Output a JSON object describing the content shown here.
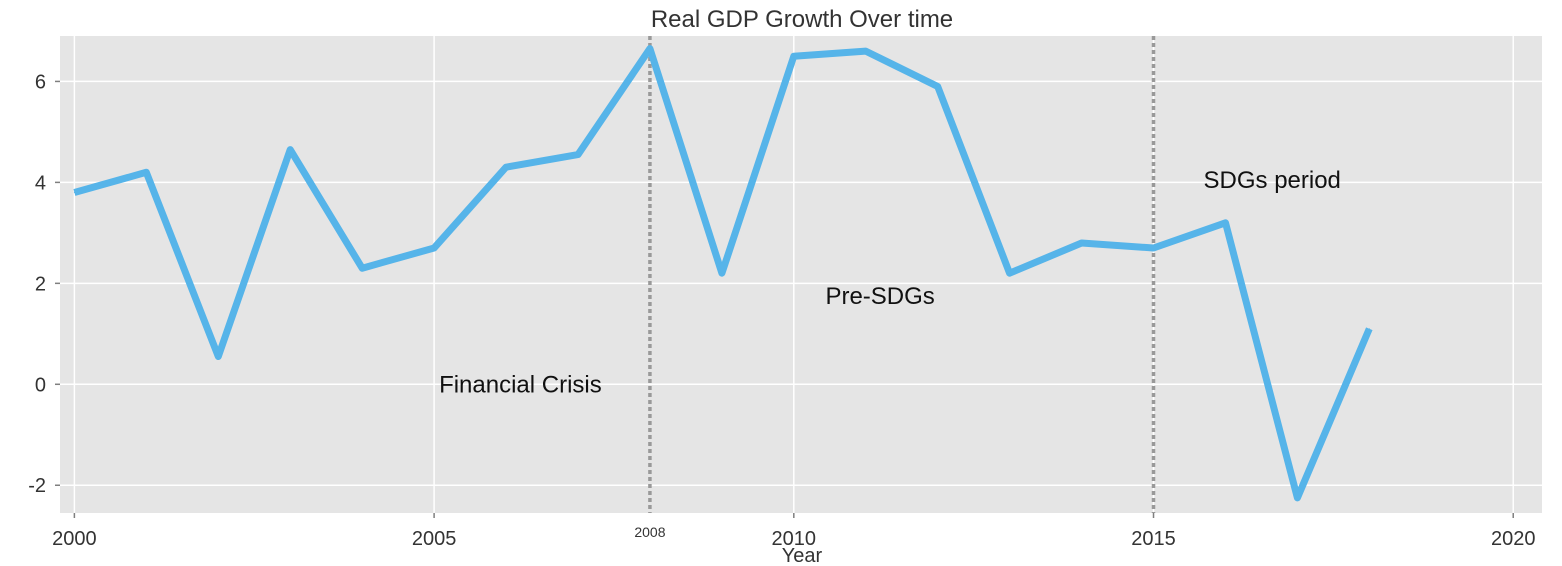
{
  "chart_data": {
    "type": "line",
    "title": "Real GDP Growth Over time",
    "xlabel": "Year",
    "ylabel": "",
    "xlim": [
      1999.8,
      2020.4
    ],
    "ylim": [
      -2.55,
      6.9
    ],
    "xticks": [
      2000,
      2005,
      2010,
      2015,
      2020
    ],
    "xtick_labels": [
      "2000",
      "2005",
      "2010",
      "2015",
      "2020"
    ],
    "yticks": [
      -2,
      0,
      2,
      4,
      6
    ],
    "ytick_labels": [
      "-2",
      "0",
      "2",
      "4",
      "6"
    ],
    "grid": true,
    "background": "#e5e5e5",
    "line_color": "#56b4e9",
    "vline_color": "#999999",
    "series": [
      {
        "x": [
          2000,
          2001,
          2002,
          2003,
          2004,
          2005,
          2006,
          2007,
          2008,
          2009,
          2010,
          2011,
          2012,
          2013,
          2014,
          2015,
          2016,
          2017,
          2018
        ],
        "y": [
          3.8,
          4.2,
          0.55,
          4.65,
          2.3,
          2.7,
          4.3,
          4.55,
          6.65,
          2.2,
          6.5,
          6.6,
          5.9,
          2.2,
          2.8,
          2.7,
          3.2,
          -2.25,
          1.1
        ]
      }
    ],
    "vlines": [
      {
        "x": 2008,
        "label": "2008"
      },
      {
        "x": 2015,
        "label": ""
      }
    ],
    "annotations": [
      {
        "text": "Financial Crisis",
        "x": 2006.2,
        "y": 0.0
      },
      {
        "text": "Pre-SDGs",
        "x": 2011.2,
        "y": 1.75
      },
      {
        "text": "SDGs period",
        "x": 2016.65,
        "y": 4.05
      }
    ]
  }
}
